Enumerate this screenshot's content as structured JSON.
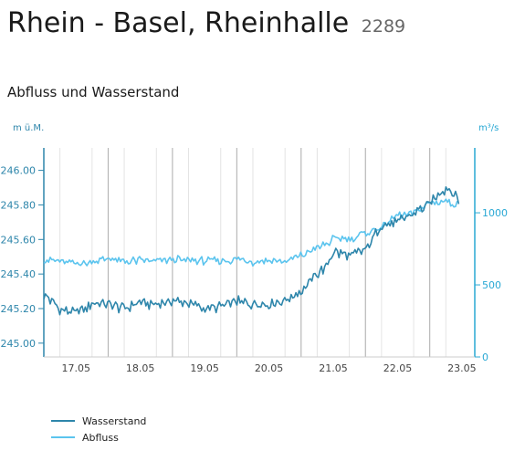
{
  "header": {
    "title": "Rhein - Basel, Rheinhalle",
    "station_no": "2289"
  },
  "subtitle": "Abfluss und Wasserstand",
  "colors": {
    "wasserstand": "#2e86ab",
    "abfluss": "#5bc4ee",
    "left_axis": "#2e86ab",
    "right_axis": "#29a8d4",
    "grid_major": "#b0b0b0",
    "grid_minor": "#e4e4e4"
  },
  "chart_data": {
    "type": "line",
    "y_left_unit": "m ü.M.",
    "y_right_unit": "m³/s",
    "y_left_ticks": [
      "245.00",
      "245.20",
      "245.40",
      "245.60",
      "245.80",
      "246.00"
    ],
    "y_left_range": [
      244.92,
      246.13
    ],
    "y_right_ticks": [
      "0",
      "500",
      "1000"
    ],
    "y_right_range": [
      0,
      1450
    ],
    "x_tick_labels": [
      "17.05",
      "18.05",
      "19.05",
      "20.05",
      "21.05",
      "22.05",
      "23.05"
    ],
    "x_range_days": [
      16.5,
      23.2
    ],
    "grid": true,
    "legend_position": "bottom-left",
    "series": [
      {
        "name": "Wasserstand",
        "axis": "left",
        "x": [
          16.5,
          16.75,
          17.0,
          17.25,
          17.5,
          17.75,
          18.0,
          18.25,
          18.5,
          18.75,
          19.0,
          19.25,
          19.5,
          19.75,
          20.0,
          20.25,
          20.5,
          20.75,
          20.9,
          21.0,
          21.25,
          21.5,
          21.75,
          22.0,
          22.25,
          22.5,
          22.75,
          22.9,
          22.95
        ],
        "y": [
          245.28,
          245.2,
          245.17,
          245.23,
          245.22,
          245.2,
          245.24,
          245.22,
          245.25,
          245.23,
          245.2,
          245.21,
          245.24,
          245.23,
          245.23,
          245.25,
          245.3,
          245.4,
          245.44,
          245.53,
          245.5,
          245.54,
          245.68,
          245.7,
          245.75,
          245.81,
          245.9,
          245.86,
          245.82
        ]
      },
      {
        "name": "Abfluss",
        "axis": "right",
        "x": [
          16.5,
          16.75,
          17.0,
          17.25,
          17.5,
          17.75,
          18.0,
          18.25,
          18.5,
          18.75,
          19.0,
          19.25,
          19.5,
          19.75,
          20.0,
          20.25,
          20.5,
          20.75,
          20.9,
          21.0,
          21.25,
          21.5,
          21.75,
          22.0,
          22.25,
          22.5,
          22.75,
          22.9,
          22.95
        ],
        "y": [
          680,
          660,
          650,
          660,
          680,
          660,
          670,
          665,
          675,
          670,
          665,
          670,
          675,
          660,
          670,
          660,
          700,
          760,
          780,
          820,
          820,
          860,
          900,
          980,
          1000,
          1070,
          1080,
          1060,
          1070
        ]
      }
    ]
  }
}
